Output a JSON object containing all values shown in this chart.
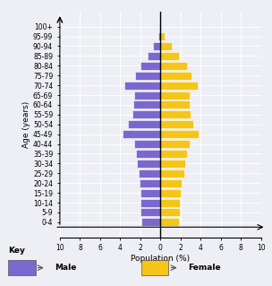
{
  "age_groups": [
    "0-4",
    "5-9",
    "10-14",
    "15-19",
    "20-24",
    "25-29",
    "30-34",
    "35-39",
    "40-44",
    "45-49",
    "50-54",
    "55-59",
    "60-64",
    "65-69",
    "70-74",
    "75-79",
    "80-84",
    "85-89",
    "90-94",
    "95-99",
    "100+"
  ],
  "male": [
    1.9,
    2.0,
    2.0,
    2.0,
    2.1,
    2.2,
    2.3,
    2.4,
    2.6,
    3.8,
    3.2,
    2.8,
    2.7,
    2.6,
    3.6,
    2.5,
    2.0,
    1.3,
    0.7,
    0.2,
    0.1
  ],
  "female": [
    1.8,
    1.9,
    1.9,
    2.0,
    2.1,
    2.4,
    2.5,
    2.6,
    2.9,
    3.8,
    3.3,
    3.0,
    2.9,
    2.9,
    3.7,
    3.1,
    2.6,
    1.8,
    1.1,
    0.4,
    0.1
  ],
  "male_color": "#7B68CE",
  "female_color": "#F5C518",
  "xlabel": "Population (%)",
  "ylabel": "Age (years)",
  "xlim": [
    -10,
    10
  ],
  "xticks": [
    -10,
    -8,
    -6,
    -4,
    -2,
    0,
    2,
    4,
    6,
    8,
    10
  ],
  "xticklabels": [
    "10",
    "8",
    "6",
    "4",
    "2",
    "0",
    "2",
    "4",
    "6",
    "8",
    "10"
  ],
  "background_color": "#eeeef5",
  "grid_color": "#ffffff",
  "bar_height": 0.82
}
